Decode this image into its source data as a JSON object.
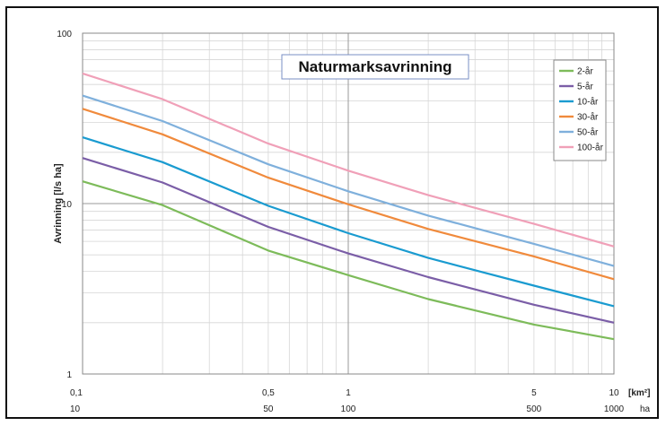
{
  "chart_data": {
    "type": "line",
    "title": "Naturmarksavrinning",
    "ylabel": "Avrinning [l/s ha]",
    "x_unit_primary": "[km²]",
    "x_unit_secondary": "ha",
    "x_scale": "log",
    "y_scale": "log",
    "xlim": [
      0.1,
      10
    ],
    "ylim": [
      1,
      100
    ],
    "grid": true,
    "legend_position": "top-right",
    "x_ticks": [
      {
        "value": 0.1,
        "label": "0,1",
        "label2": "10"
      },
      {
        "value": 0.5,
        "label": "0,5",
        "label2": "50"
      },
      {
        "value": 1,
        "label": "1",
        "label2": "100"
      },
      {
        "value": 5,
        "label": "5",
        "label2": "500"
      },
      {
        "value": 10,
        "label": "10",
        "label2": "1000"
      }
    ],
    "y_ticks": [
      {
        "value": 1,
        "label": "1"
      },
      {
        "value": 10,
        "label": "10"
      },
      {
        "value": 100,
        "label": "100"
      }
    ],
    "series": [
      {
        "name": "2-år",
        "color": "#7dbb5a",
        "x": [
          0.1,
          0.2,
          0.5,
          1,
          2,
          5,
          10
        ],
        "y": [
          13.5,
          9.8,
          5.3,
          3.8,
          2.75,
          1.95,
          1.6
        ]
      },
      {
        "name": "5-år",
        "color": "#7b5ea7",
        "x": [
          0.1,
          0.2,
          0.5,
          1,
          2,
          5,
          10
        ],
        "y": [
          18.5,
          13.3,
          7.3,
          5.1,
          3.7,
          2.55,
          2.0
        ]
      },
      {
        "name": "10-år",
        "color": "#1a9bd0",
        "x": [
          0.1,
          0.2,
          0.5,
          1,
          2,
          5,
          10
        ],
        "y": [
          24.5,
          17.5,
          9.7,
          6.7,
          4.8,
          3.3,
          2.5
        ]
      },
      {
        "name": "30-år",
        "color": "#f08a3c",
        "x": [
          0.1,
          0.2,
          0.5,
          1,
          2,
          5,
          10
        ],
        "y": [
          36,
          25.5,
          14.2,
          9.9,
          7.1,
          4.9,
          3.6
        ]
      },
      {
        "name": "50-år",
        "color": "#7fb0dc",
        "x": [
          0.1,
          0.2,
          0.5,
          1,
          2,
          5,
          10
        ],
        "y": [
          43,
          30.5,
          17,
          11.8,
          8.5,
          5.8,
          4.3
        ]
      },
      {
        "name": "100-år",
        "color": "#f0a0b8",
        "x": [
          0.1,
          0.2,
          0.5,
          1,
          2,
          5,
          10
        ],
        "y": [
          58,
          41,
          22.5,
          15.6,
          11.2,
          7.6,
          5.6
        ]
      }
    ]
  }
}
